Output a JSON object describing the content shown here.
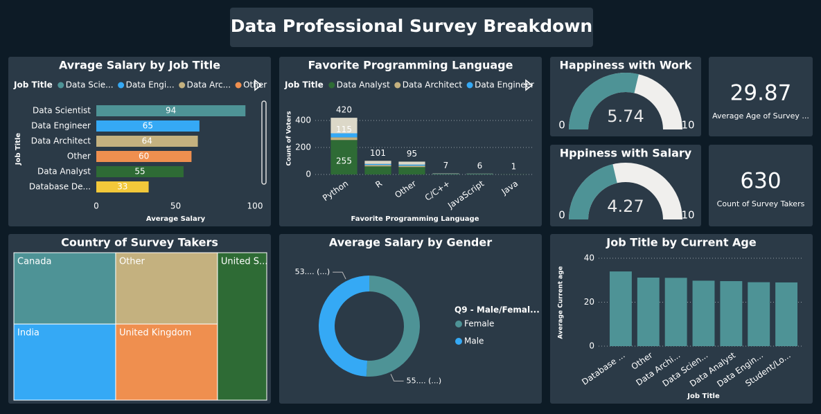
{
  "title": "Data Professional Survey Breakdown",
  "chart_data": [
    {
      "type": "bar",
      "horizontal": true,
      "title": "Avrage Salary by Job Title",
      "legend": {
        "title": "Job Title",
        "labels": [
          "Data Scie...",
          "Data Engi...",
          "Data Arc...",
          "Other"
        ]
      },
      "categories": [
        "Data Scientist",
        "Data Engineer",
        "Data Architect",
        "Other",
        "Data Analyst",
        "Database De..."
      ],
      "values": [
        94,
        65,
        64,
        60,
        55,
        33
      ],
      "colors": [
        "#4e9396",
        "#35a9f5",
        "#c4b17f",
        "#ef8f4f",
        "#2e6b35",
        "#f2c83a"
      ],
      "xlim": [
        0,
        100
      ],
      "xticks": [
        0,
        50,
        100
      ],
      "xlabel": "Average Salary",
      "ylabel": "Job Title"
    },
    {
      "type": "bar",
      "stacked": true,
      "title": "Favorite Programming Language",
      "legend_title": "Job Title",
      "categories": [
        "Python",
        "R",
        "Other",
        "C/C++",
        "JavaScript",
        "Java"
      ],
      "series": [
        {
          "name": "Data Analyst",
          "color": "#2e6b35",
          "values": [
            255,
            60,
            55,
            3,
            3,
            1
          ]
        },
        {
          "name": "Data Architect",
          "color": "#c4b17f",
          "values": [
            20,
            10,
            10,
            1,
            1,
            0
          ]
        },
        {
          "name": "Data Engineer",
          "color": "#35a9f5",
          "values": [
            30,
            8,
            8,
            1,
            1,
            0
          ]
        },
        {
          "color": "#dcd8c8",
          "values": [
            115,
            23,
            22,
            2,
            1,
            0
          ]
        }
      ],
      "totals": [
        420,
        101,
        95,
        7,
        6,
        1
      ],
      "ylim": [
        0,
        450
      ],
      "yticks": [
        0,
        200,
        400
      ],
      "grid": true,
      "xlabel": "Favorite Programming Language",
      "ylabel": "Count of Voters"
    },
    {
      "type": "gauge",
      "title": "Happiness with Work",
      "value": 5.74,
      "range": [
        0,
        10
      ],
      "color": "#4e9396",
      "track_color": "#f0efed"
    },
    {
      "type": "gauge",
      "title": "Hppiness with Salary",
      "value": 4.27,
      "range": [
        0,
        10
      ],
      "color": "#4e9396",
      "track_color": "#f0efed"
    },
    {
      "type": "treemap",
      "title": "Country of Survey Takers",
      "categories": [
        "Canada",
        "Other",
        "India",
        "United Kingdom",
        "United S..."
      ],
      "values": [
        15,
        15,
        16,
        16,
        15
      ],
      "colors": [
        "#4e9396",
        "#c4b17f",
        "#35a9f5",
        "#ef8f4f",
        "#2e6b35"
      ]
    },
    {
      "type": "donut",
      "title": "Average Salary by Gender",
      "legend_title": "Q9 - Male/Femal...",
      "categories": [
        "Female",
        "Male"
      ],
      "values": [
        55,
        53
      ],
      "value_labels": [
        "55.... (...)",
        "53.... (...)"
      ],
      "colors": [
        "#4e9396",
        "#35a9f5"
      ]
    },
    {
      "type": "bar",
      "title": "Job Title by Current Age",
      "categories": [
        "Database ...",
        "Other",
        "Data Archi...",
        "Data Scien...",
        "Data Analyst",
        "Data Engin...",
        "Student/Lo..."
      ],
      "values": [
        34,
        31.2,
        31.1,
        29.8,
        29.6,
        29.1,
        29
      ],
      "color": "#4e9396",
      "ylim": [
        0,
        42
      ],
      "yticks": [
        0,
        20,
        40
      ],
      "grid": true,
      "xlabel": "Job Title",
      "ylabel": "Average Current age"
    }
  ],
  "cards": [
    {
      "value": 29.87,
      "label": "Average Age of Survey ..."
    },
    {
      "value": 630,
      "label": "Count of Survey Takers"
    }
  ]
}
